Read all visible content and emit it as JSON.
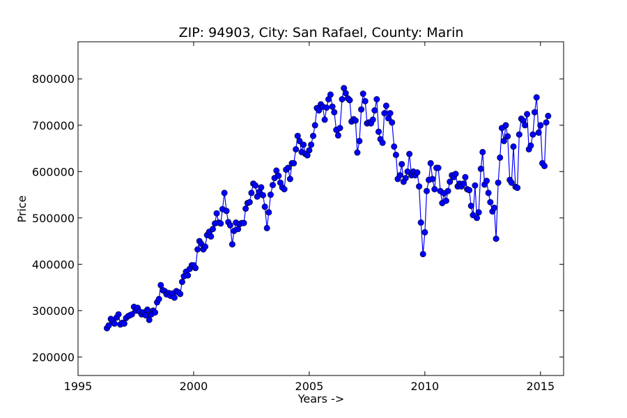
{
  "chart_data": {
    "type": "line",
    "title": "ZIP: 94903, City: San Rafael, County: Marin",
    "xlabel": "Years ->",
    "ylabel": "Price",
    "xlim": [
      1995,
      2016
    ],
    "ylim": [
      160000,
      880000
    ],
    "xticks": [
      1995,
      2000,
      2005,
      2010,
      2015
    ],
    "yticks": [
      200000,
      300000,
      400000,
      500000,
      600000,
      700000,
      800000
    ],
    "grid": false,
    "legend": "none",
    "color": "#0000ff",
    "marker": "circle",
    "series": [
      {
        "x": [
          1996.25,
          1996.33,
          1996.42,
          1996.5,
          1996.58,
          1996.67,
          1996.75,
          1996.83,
          1996.92,
          1997.0,
          1997.08,
          1997.17,
          1997.25,
          1997.33,
          1997.42,
          1997.5,
          1997.58,
          1997.67,
          1997.75,
          1997.83,
          1997.92,
          1998.0,
          1998.08,
          1998.17,
          1998.25,
          1998.33,
          1998.42,
          1998.5,
          1998.58,
          1998.67,
          1998.75,
          1998.83,
          1998.92,
          1999.0,
          1999.08,
          1999.17,
          1999.25,
          1999.33,
          1999.42,
          1999.5,
          1999.58,
          1999.67,
          1999.75,
          1999.83,
          1999.92,
          2000.0,
          2000.08,
          2000.17,
          2000.25,
          2000.33,
          2000.42,
          2000.5,
          2000.58,
          2000.67,
          2000.75,
          2000.83,
          2000.92,
          2001.0,
          2001.08,
          2001.17,
          2001.25,
          2001.33,
          2001.42,
          2001.5,
          2001.58,
          2001.67,
          2001.75,
          2001.83,
          2001.92,
          2002.0,
          2002.08,
          2002.17,
          2002.25,
          2002.33,
          2002.42,
          2002.5,
          2002.58,
          2002.67,
          2002.75,
          2002.83,
          2002.92,
          2003.0,
          2003.08,
          2003.17,
          2003.25,
          2003.33,
          2003.42,
          2003.5,
          2003.58,
          2003.67,
          2003.75,
          2003.83,
          2003.92,
          2004.0,
          2004.08,
          2004.17,
          2004.25,
          2004.33,
          2004.42,
          2004.5,
          2004.58,
          2004.67,
          2004.75,
          2004.83,
          2004.92,
          2005.0,
          2005.08,
          2005.17,
          2005.25,
          2005.33,
          2005.42,
          2005.5,
          2005.58,
          2005.67,
          2005.75,
          2005.83,
          2005.92,
          2006.0,
          2006.08,
          2006.17,
          2006.25,
          2006.33,
          2006.42,
          2006.5,
          2006.58,
          2006.67,
          2006.75,
          2006.83,
          2006.92,
          2007.0,
          2007.08,
          2007.17,
          2007.25,
          2007.33,
          2007.42,
          2007.5,
          2007.58,
          2007.67,
          2007.75,
          2007.83,
          2007.92,
          2008.0,
          2008.08,
          2008.17,
          2008.25,
          2008.33,
          2008.42,
          2008.5,
          2008.58,
          2008.67,
          2008.75,
          2008.83,
          2008.92,
          2009.0,
          2009.08,
          2009.17,
          2009.25,
          2009.33,
          2009.42,
          2009.5,
          2009.58,
          2009.67,
          2009.75,
          2009.83,
          2009.92,
          2010.0,
          2010.08,
          2010.17,
          2010.25,
          2010.33,
          2010.42,
          2010.5,
          2010.58,
          2010.67,
          2010.75,
          2010.83,
          2010.92,
          2011.0,
          2011.08,
          2011.17,
          2011.25,
          2011.33,
          2011.42,
          2011.5,
          2011.58,
          2011.67,
          2011.75,
          2011.83,
          2011.92,
          2012.0,
          2012.08,
          2012.17,
          2012.25,
          2012.33,
          2012.42,
          2012.5,
          2012.58,
          2012.67,
          2012.75,
          2012.83,
          2012.92,
          2013.0,
          2013.08,
          2013.17,
          2013.25,
          2013.33,
          2013.42,
          2013.5,
          2013.58,
          2013.67,
          2013.75,
          2013.83,
          2013.92,
          2014.0,
          2014.08,
          2014.17,
          2014.25,
          2014.33,
          2014.42,
          2014.5,
          2014.58,
          2014.67,
          2014.75,
          2014.83,
          2014.92,
          2015.0,
          2015.08,
          2015.17,
          2015.25,
          2015.33
        ],
        "y": [
          262000,
          268000,
          282000,
          278000,
          272000,
          285000,
          292000,
          270000,
          274000,
          272000,
          284000,
          288000,
          290000,
          292000,
          308000,
          300000,
          306000,
          298000,
          292000,
          296000,
          290000,
          302000,
          280000,
          292000,
          300000,
          296000,
          318000,
          325000,
          355000,
          344000,
          342000,
          335000,
          338000,
          332000,
          337000,
          328000,
          342000,
          340000,
          336000,
          362000,
          374000,
          384000,
          376000,
          390000,
          398000,
          398000,
          392000,
          432000,
          450000,
          444000,
          432000,
          438000,
          463000,
          470000,
          460000,
          476000,
          488000,
          510000,
          490000,
          488000,
          519000,
          554000,
          515000,
          491000,
          484000,
          443000,
          472000,
          490000,
          476000,
          487000,
          489000,
          489000,
          520000,
          532000,
          534000,
          554000,
          574000,
          570000,
          546000,
          556000,
          566000,
          549000,
          524000,
          478000,
          512000,
          550000,
          571000,
          586000,
          602000,
          591000,
          576000,
          566000,
          562000,
          604000,
          608000,
          584000,
          618000,
          618000,
          648000,
          677000,
          666000,
          642000,
          658000,
          638000,
          635000,
          646000,
          658000,
          677000,
          700000,
          737000,
          732000,
          745000,
          740000,
          712000,
          738000,
          756000,
          766000,
          740000,
          728000,
          690000,
          678000,
          694000,
          756000,
          780000,
          769000,
          758000,
          754000,
          708000,
          713000,
          710000,
          641000,
          666000,
          734000,
          768000,
          752000,
          704000,
          706000,
          704000,
          712000,
          732000,
          756000,
          686000,
          670000,
          662000,
          726000,
          742000,
          715000,
          726000,
          706000,
          654000,
          636000,
          584000,
          592000,
          616000,
          578000,
          586000,
          600000,
          638000,
          592000,
          600000,
          592000,
          598000,
          568000,
          490000,
          422000,
          469000,
          558000,
          582000,
          618000,
          584000,
          562000,
          608000,
          608000,
          558000,
          532000,
          553000,
          537000,
          558000,
          578000,
          592000,
          588000,
          595000,
          568000,
          574000,
          568000,
          574000,
          588000,
          562000,
          560000,
          526000,
          506000,
          570000,
          500000,
          512000,
          606000,
          642000,
          572000,
          580000,
          554000,
          534000,
          514000,
          522000,
          455000,
          576000,
          630000,
          694000,
          666000,
          700000,
          676000,
          582000,
          576000,
          654000,
          567000,
          565000,
          680000,
          714000,
          710000,
          700000,
          724000,
          648000,
          656000,
          680000,
          728000,
          760000,
          684000,
          700000,
          618000,
          612000,
          706000,
          720000
        ]
      }
    ]
  }
}
